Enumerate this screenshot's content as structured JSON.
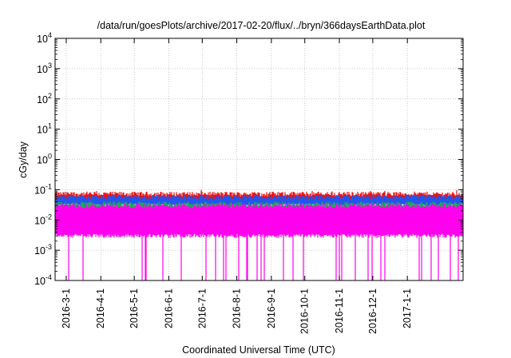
{
  "chart_data": {
    "type": "line",
    "title": "/data/run/goesPlots/archive/2017-02-20/flux/../bryn/366daysEarthData.plot",
    "xlabel": "Coordinated Universal Time (UTC)",
    "ylabel": "cGy/day",
    "yscale": "log",
    "ylim": [
      0.0001,
      10000
    ],
    "y_ticks": [
      {
        "base": "10",
        "exp": "4",
        "value": 10000
      },
      {
        "base": "10",
        "exp": "3",
        "value": 1000
      },
      {
        "base": "10",
        "exp": "2",
        "value": 100
      },
      {
        "base": "10",
        "exp": "1",
        "value": 10
      },
      {
        "base": "10",
        "exp": "0",
        "value": 1
      },
      {
        "base": "10",
        "exp": "-1",
        "value": 0.1
      },
      {
        "base": "10",
        "exp": "-2",
        "value": 0.01
      },
      {
        "base": "10",
        "exp": "-3",
        "value": 0.001
      },
      {
        "base": "10",
        "exp": "-4",
        "value": 0.0001
      }
    ],
    "xlim": [
      "2016-02-20",
      "2017-02-20"
    ],
    "x_ticks": [
      "2016-3-1",
      "2016-4-1",
      "2016-5-1",
      "2016-6-1",
      "2016-7-1",
      "2016-8-1",
      "2016-9-1",
      "2016-10-1",
      "2016-11-1",
      "2016-12-1",
      "2017-1-1"
    ],
    "x_tick_dates": [
      "2016-03-01",
      "2016-04-01",
      "2016-05-01",
      "2016-06-01",
      "2016-07-01",
      "2016-08-01",
      "2016-09-01",
      "2016-10-01",
      "2016-11-01",
      "2016-12-01",
      "2017-01-01"
    ],
    "grid": true,
    "legend": "none",
    "series": [
      {
        "color": "#ee1111",
        "band_low": 0.04,
        "band_high": 0.075,
        "spike_max": 0.1
      },
      {
        "color": "#2255ee",
        "band_low": 0.03,
        "band_high": 0.06
      },
      {
        "color": "#22aa55",
        "band_low": 0.02,
        "band_high": 0.035
      },
      {
        "color": "#ff00ee",
        "band_low": 0.003,
        "band_high": 0.03,
        "dip_min": 0.0001
      }
    ]
  }
}
